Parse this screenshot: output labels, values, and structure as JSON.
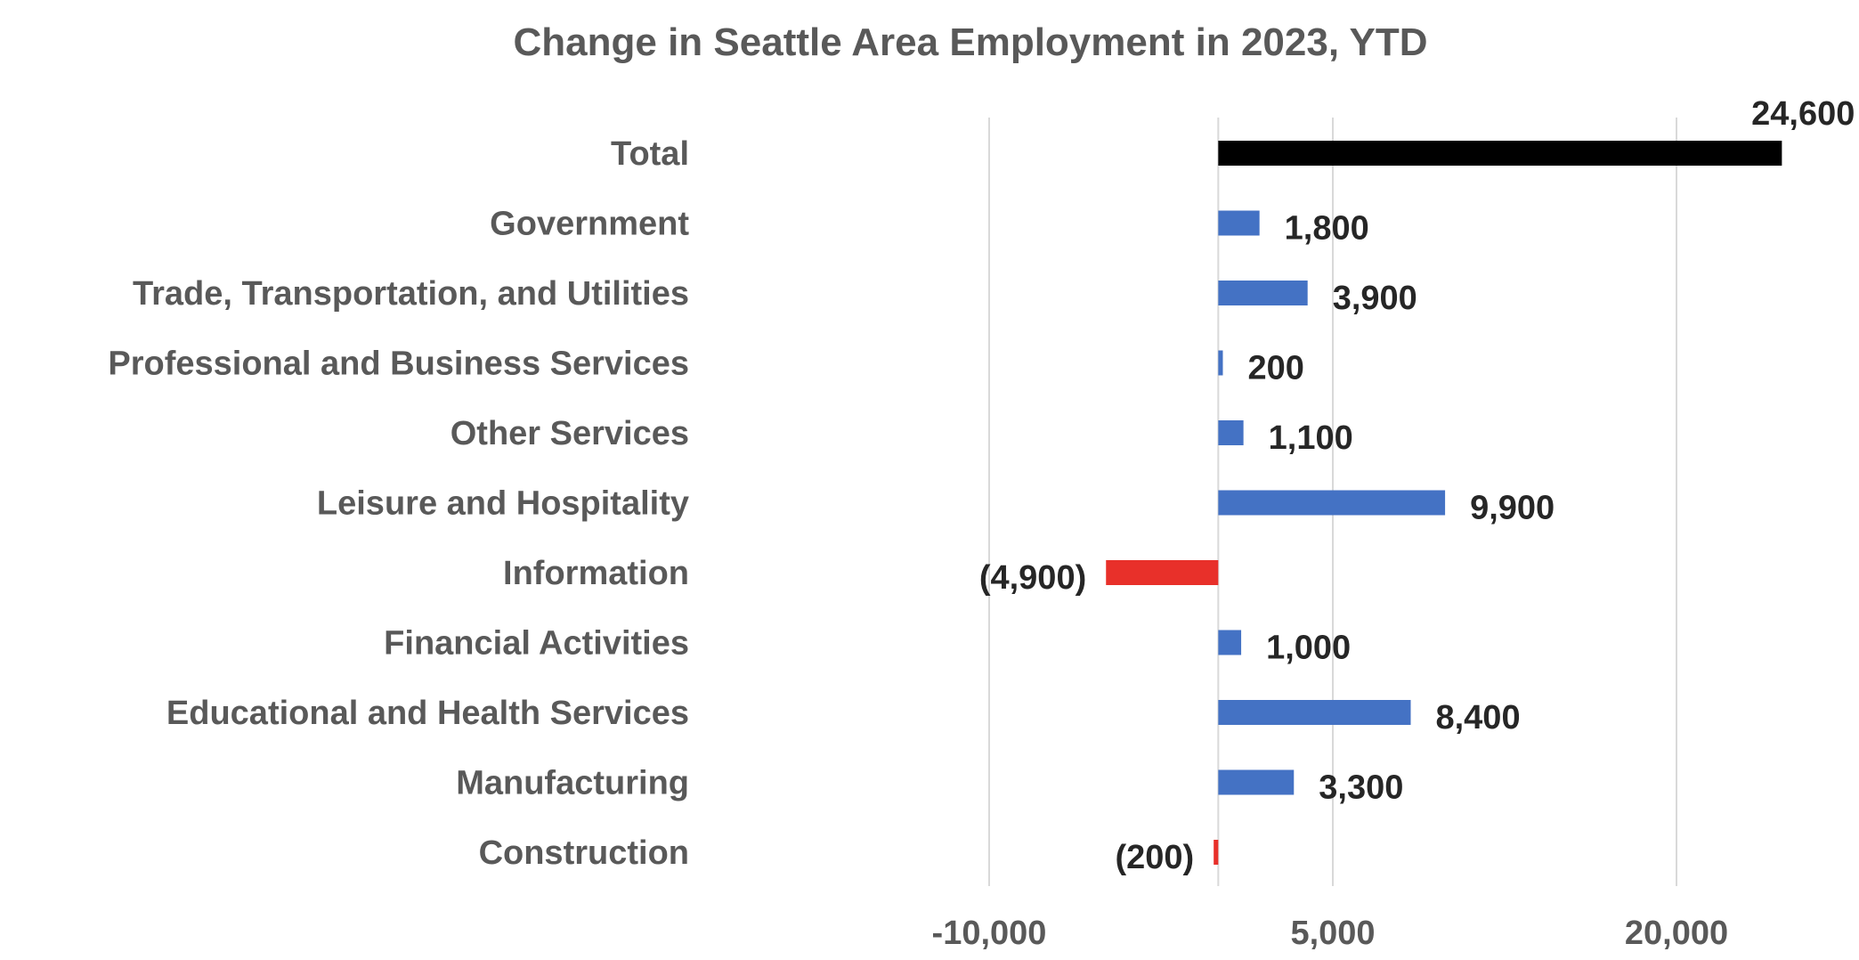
{
  "chart_data": {
    "type": "bar",
    "orientation": "horizontal",
    "title": "Change in Seattle Area Employment in 2023, YTD",
    "xlabel": "",
    "ylabel": "",
    "xlim": [
      -17500,
      27500
    ],
    "x_ticks": [
      -10000,
      5000,
      20000
    ],
    "x_tick_labels": [
      "-10,000",
      "5,000",
      "20,000"
    ],
    "grid": "vertical",
    "legend": "none",
    "categories": [
      "Total",
      "Government",
      "Trade, Transportation, and Utilities",
      "Professional and Business Services",
      "Other Services",
      "Leisure and Hospitality",
      "Information",
      "Financial Activities",
      "Educational and Health Services",
      "Manufacturing",
      "Construction"
    ],
    "values": [
      24600,
      1800,
      3900,
      200,
      1100,
      9900,
      -4900,
      1000,
      8400,
      3300,
      -200
    ],
    "data_labels": [
      "24,600",
      "1,800",
      "3,900",
      "200",
      "1,100",
      "9,900",
      "(4,900)",
      "1,000",
      "8,400",
      "3,300",
      "(200)"
    ],
    "colors": {
      "total": "#000000",
      "positive": "#4472C4",
      "negative": "#E8302A"
    }
  }
}
